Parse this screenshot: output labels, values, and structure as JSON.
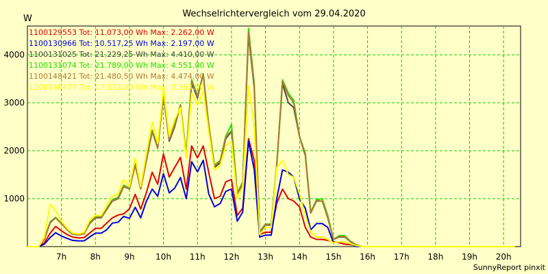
{
  "chart_data": {
    "type": "line",
    "title": "Wechselrichtervergleich vom 29.04.2020",
    "ylabel": "W",
    "xlabel": "",
    "footer": "SunnyReport pinxit",
    "ylim": [
      0,
      4600
    ],
    "xlim": [
      6.0,
      20.5
    ],
    "grid": true,
    "legend_position": "top-left",
    "y_ticks": [
      1000,
      2000,
      3000,
      4000
    ],
    "y_tick_labels": [
      "1000",
      "2000",
      "3000",
      "4000"
    ],
    "x_ticks": [
      7,
      8,
      9,
      10,
      11,
      12,
      13,
      14,
      15,
      16,
      17,
      18,
      19,
      20
    ],
    "x_tick_labels": [
      "7h",
      "8h",
      "9h",
      "10h",
      "11h",
      "12h",
      "13h",
      "14h",
      "15h",
      "16h",
      "17h",
      "18h",
      "19h",
      "20h"
    ],
    "x": [
      6.0,
      6.33,
      6.5,
      6.67,
      6.83,
      7.0,
      7.17,
      7.33,
      7.5,
      7.67,
      7.83,
      8.0,
      8.17,
      8.33,
      8.5,
      8.67,
      8.83,
      9.0,
      9.17,
      9.33,
      9.5,
      9.67,
      9.83,
      10.0,
      10.17,
      10.33,
      10.5,
      10.67,
      10.83,
      11.0,
      11.17,
      11.33,
      11.5,
      11.67,
      11.83,
      12.0,
      12.17,
      12.33,
      12.5,
      12.67,
      12.83,
      13.0,
      13.17,
      13.33,
      13.5,
      13.67,
      13.83,
      14.0,
      14.17,
      14.33,
      14.5,
      14.67,
      14.83,
      15.0,
      15.17,
      15.33,
      15.5,
      15.67,
      15.83,
      16.0,
      16.17,
      16.33,
      16.5,
      16.67,
      16.83,
      17.0,
      17.17,
      17.33,
      17.5,
      17.67,
      17.83,
      18.0,
      18.17,
      18.33,
      18.5,
      18.67,
      18.83,
      19.0,
      19.17,
      19.33,
      19.5,
      19.67,
      19.83,
      20.0,
      20.17,
      20.33
    ],
    "series": [
      {
        "name": "1100129553",
        "legend": "1100129553 Tot: 11.073,00 Wh Max: 2.262,00 W",
        "color": "#dd0000",
        "values": [
          0,
          0,
          80,
          280,
          420,
          330,
          250,
          200,
          180,
          190,
          280,
          380,
          380,
          490,
          600,
          660,
          680,
          790,
          1090,
          780,
          1130,
          1550,
          1300,
          1930,
          1450,
          1650,
          1860,
          1200,
          2100,
          1850,
          2100,
          1550,
          1000,
          1050,
          1350,
          1400,
          650,
          800,
          2250,
          1800,
          250,
          300,
          300,
          900,
          1200,
          1000,
          950,
          830,
          400,
          200,
          150,
          150,
          130,
          100,
          80,
          50,
          40,
          30,
          0,
          0,
          0,
          0,
          0,
          0,
          0,
          0,
          0,
          0,
          0,
          0,
          0,
          0,
          0,
          0,
          0,
          0,
          0,
          0,
          0,
          0,
          0,
          0,
          0,
          0,
          0,
          0
        ]
      },
      {
        "name": "1100130966",
        "legend": "1100130966 Tot: 10.517,25 Wh Max: 2.197,00 W",
        "color": "#0000dd",
        "values": [
          0,
          0,
          50,
          190,
          290,
          220,
          170,
          130,
          120,
          120,
          200,
          280,
          280,
          350,
          490,
          510,
          630,
          590,
          820,
          600,
          950,
          1200,
          1050,
          1520,
          1120,
          1220,
          1440,
          1000,
          1770,
          1560,
          1800,
          1100,
          830,
          900,
          1150,
          1200,
          530,
          720,
          2200,
          1600,
          200,
          240,
          240,
          1000,
          1600,
          1550,
          1450,
          1000,
          800,
          350,
          480,
          480,
          400,
          80,
          100,
          90,
          60,
          0,
          0,
          0,
          0,
          0,
          0,
          0,
          0,
          0,
          0,
          0,
          0,
          0,
          0,
          0,
          0,
          0,
          0,
          0,
          0,
          0,
          0,
          0,
          0,
          0,
          0,
          0,
          0,
          0
        ]
      },
      {
        "name": "1100131025",
        "legend": "1100131025 Tot: 21.229,25 Wh Max: 4.410,00 W",
        "color": "#444444",
        "values": [
          0,
          0,
          150,
          500,
          600,
          480,
          350,
          260,
          240,
          270,
          480,
          600,
          600,
          770,
          950,
          1000,
          1250,
          1200,
          1700,
          1200,
          1800,
          2400,
          2050,
          3150,
          2200,
          2500,
          2950,
          1900,
          3400,
          3100,
          3600,
          2500,
          1650,
          1750,
          2250,
          2400,
          1100,
          1300,
          4410,
          3300,
          300,
          450,
          450,
          1700,
          3400,
          3000,
          2900,
          2300,
          1900,
          700,
          950,
          950,
          600,
          150,
          200,
          200,
          100,
          30,
          0,
          0,
          0,
          0,
          0,
          0,
          0,
          0,
          0,
          0,
          0,
          0,
          0,
          0,
          0,
          0,
          0,
          0,
          0,
          0,
          0,
          0,
          0,
          0,
          0,
          0,
          0,
          0
        ]
      },
      {
        "name": "1100131074",
        "legend": "1100131074 Tot: 21.789,00 Wh Max: 4.551,00 W",
        "color": "#22dd00",
        "values": [
          0,
          0,
          160,
          520,
          610,
          490,
          360,
          270,
          250,
          280,
          500,
          620,
          620,
          790,
          980,
          1030,
          1280,
          1220,
          1730,
          1220,
          1830,
          2430,
          2070,
          3180,
          2250,
          2550,
          2960,
          1950,
          3480,
          3150,
          3600,
          2550,
          1700,
          1800,
          2300,
          2550,
          1120,
          1350,
          4551,
          3400,
          320,
          470,
          470,
          1720,
          3480,
          3200,
          3050,
          2300,
          1950,
          720,
          980,
          1000,
          650,
          150,
          230,
          230,
          110,
          40,
          0,
          0,
          0,
          0,
          0,
          0,
          0,
          0,
          0,
          0,
          0,
          0,
          0,
          0,
          0,
          0,
          0,
          0,
          0,
          0,
          0,
          0,
          0,
          0,
          0,
          0,
          0,
          0
        ]
      },
      {
        "name": "1100148421",
        "legend": "1100148421 Tot: 21.480,50 Wh Max: 4.474,00 W",
        "color": "#b07a38",
        "values": [
          0,
          0,
          150,
          510,
          600,
          480,
          350,
          270,
          240,
          270,
          490,
          610,
          610,
          780,
          960,
          1010,
          1260,
          1200,
          1710,
          1200,
          1810,
          2410,
          2060,
          3160,
          2230,
          2530,
          2950,
          1930,
          3450,
          3130,
          3580,
          2530,
          1680,
          1780,
          2280,
          2420,
          1100,
          1330,
          4474,
          3350,
          310,
          460,
          460,
          1710,
          3450,
          3150,
          3000,
          2300,
          1920,
          700,
          960,
          950,
          620,
          150,
          210,
          210,
          100,
          35,
          0,
          0,
          0,
          0,
          0,
          0,
          0,
          0,
          0,
          0,
          0,
          0,
          0,
          0,
          0,
          0,
          0,
          0,
          0,
          0,
          0,
          0,
          0,
          0,
          0,
          0,
          0,
          0
        ]
      },
      {
        "name": "1100148477",
        "legend": "1100148477 Tot: 17.532,00 Wh Max: 3.363,00 W",
        "color": "#ffff00",
        "values": [
          0,
          0,
          200,
          880,
          750,
          530,
          380,
          280,
          260,
          300,
          550,
          650,
          650,
          850,
          1050,
          1100,
          1400,
          1250,
          1850,
          1250,
          1950,
          2600,
          2150,
          3300,
          2300,
          2650,
          2900,
          1850,
          3200,
          2950,
          3250,
          2400,
          1600,
          1700,
          2100,
          2200,
          1000,
          1250,
          3363,
          2500,
          250,
          400,
          400,
          1650,
          1800,
          1500,
          1450,
          1100,
          650,
          300,
          200,
          200,
          150,
          80,
          100,
          90,
          60,
          20,
          0,
          0,
          0,
          0,
          0,
          0,
          0,
          0,
          0,
          0,
          0,
          0,
          0,
          0,
          0,
          0,
          0,
          0,
          0,
          0,
          0,
          0,
          0,
          0,
          0,
          0,
          0,
          0
        ]
      }
    ]
  }
}
